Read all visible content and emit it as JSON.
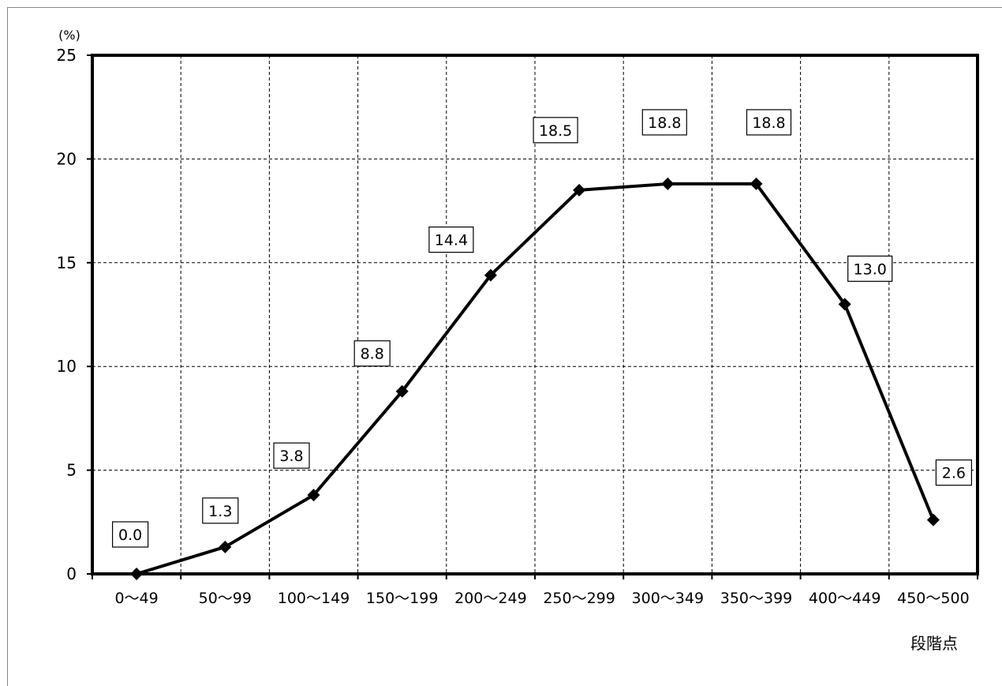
{
  "chart_data": {
    "type": "line",
    "title": "",
    "xlabel": "段階点",
    "ylabel": "(%)",
    "ylim": [
      0,
      25
    ],
    "yticks": [
      0,
      5,
      10,
      15,
      20,
      25
    ],
    "categories": [
      "0〜49",
      "50〜99",
      "100〜149",
      "150〜199",
      "200〜249",
      "250〜299",
      "300〜349",
      "350〜399",
      "400〜449",
      "450〜500"
    ],
    "values": [
      0.0,
      1.3,
      3.8,
      8.8,
      14.4,
      18.5,
      18.8,
      18.8,
      13.0,
      2.6
    ],
    "data_labels": [
      "0.0",
      "1.3",
      "3.8",
      "8.8",
      "14.4",
      "18.5",
      "18.8",
      "18.8",
      "13.0",
      "2.6"
    ],
    "grid": true,
    "marker": "diamond",
    "line_color": "#000000"
  }
}
